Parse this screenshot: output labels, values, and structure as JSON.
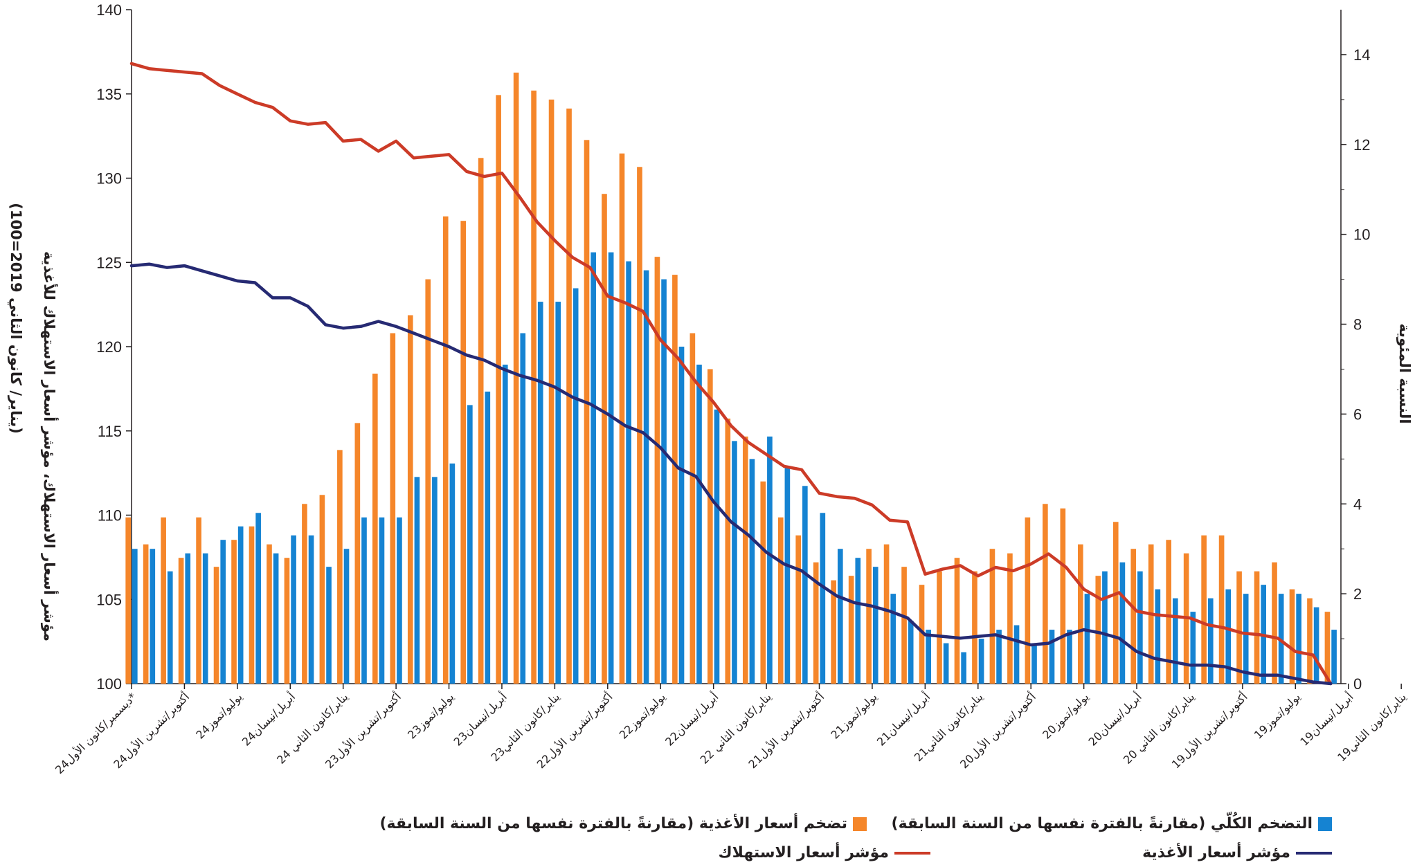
{
  "chart_data": {
    "type": "bar+line",
    "left_axis": {
      "title_line1": "مؤشر أسعار الاستهلاك، مؤشر أسعار الاستهلاك للأغذية",
      "title_line2": "(يناير/ كانون الثاني 2019=100)",
      "ticks": [
        100,
        105,
        110,
        115,
        120,
        125,
        130,
        135,
        140
      ],
      "ylim": [
        100,
        140
      ]
    },
    "right_axis": {
      "title": "النسبة المئوية",
      "ticks": [
        0,
        2,
        4,
        6,
        8,
        10,
        12,
        14
      ],
      "ylim": [
        0,
        15
      ]
    },
    "x_labels": [
      "ديسمبر/كانون الأول24*",
      "أكتوبر/تشرين الأول24",
      "يوليو/تموز24",
      "أبريل/نيسان24",
      "يناير/كانون الثاني 24",
      "أكتوبر/تشرين الأول23",
      "يوليو/تموز23",
      "أبريل/نيسان23",
      "يناير/كانون الثاني23",
      "أكتوبر/تشرين الأول22",
      "يوليو/تموز22",
      "أبريل/نيسان22",
      "يناير/كانون الثاني 22",
      "أكتوبر/تشرين الأول21",
      "يوليو/تموز21",
      "أبريل/نيسان21",
      "يناير/كانون الثاني21",
      "أكتوبر/تشرين الأول20",
      "يوليو/تموز20",
      "أبريل/نيسان20",
      "يناير/كانون الثاني 20",
      "أكتوبر/تشرين الأول19",
      "يوليو/تموز19",
      "أبريل/نيسان19",
      "يناير/كانون الثاني19"
    ],
    "series": [
      {
        "name": "تضخم أسعار الأغذية (مقارنةً بالفترة نفسها من السنة السابقة)",
        "type": "bar",
        "axis": "right",
        "color": "#f5862a",
        "values": [
          3.7,
          3.1,
          3.7,
          2.8,
          3.7,
          2.6,
          3.2,
          3.5,
          3.1,
          2.8,
          4.0,
          4.2,
          5.2,
          5.8,
          6.9,
          7.8,
          8.2,
          9.0,
          10.4,
          10.3,
          11.7,
          13.1,
          13.6,
          13.2,
          13.0,
          12.8,
          12.1,
          10.9,
          11.8,
          11.5,
          9.5,
          9.1,
          7.8,
          7.0,
          5.9,
          5.5,
          4.5,
          3.7,
          3.3,
          2.7,
          2.3,
          2.4,
          3.0,
          3.1,
          2.6,
          2.2,
          2.5,
          2.8,
          2.5,
          3.0,
          2.9,
          3.7,
          4.0,
          3.9,
          3.1,
          2.4,
          3.6,
          3.0,
          3.1,
          3.2,
          2.9,
          3.3,
          3.3,
          2.5,
          2.5,
          2.7,
          2.1,
          1.9,
          1.6
        ],
        "note": "values listed from left (Dec 2024) to right (Jan 2019)"
      },
      {
        "name": "التضخم الكُلّي (مقارنةً بالفترة نفسها من السنة السابقة)",
        "type": "bar",
        "axis": "right",
        "color": "#1583d2",
        "values": [
          3.0,
          3.0,
          2.5,
          2.9,
          2.9,
          3.2,
          3.5,
          3.8,
          2.9,
          3.3,
          3.3,
          2.6,
          3.0,
          3.7,
          3.7,
          3.7,
          4.6,
          4.6,
          4.9,
          6.2,
          6.5,
          7.1,
          7.8,
          8.5,
          8.5,
          8.8,
          9.6,
          9.6,
          9.4,
          9.2,
          9.0,
          7.5,
          7.1,
          6.1,
          5.4,
          5.0,
          5.5,
          4.8,
          4.4,
          3.8,
          3.0,
          2.8,
          2.6,
          2.0,
          1.4,
          1.2,
          0.9,
          0.7,
          1.0,
          1.2,
          1.3,
          0.9,
          1.2,
          1.2,
          2.0,
          2.5,
          2.7,
          2.5,
          2.1,
          1.9,
          1.6,
          1.9,
          2.1,
          2.0,
          2.2,
          2.0,
          2.0,
          1.7,
          1.2
        ]
      },
      {
        "name": "مؤشر أسعار الاستهلاك",
        "type": "line",
        "axis": "left",
        "color": "#cc3b27",
        "values": [
          136.8,
          136.5,
          136.4,
          136.3,
          136.2,
          135.5,
          135.0,
          134.5,
          134.2,
          133.4,
          133.2,
          133.3,
          132.2,
          132.3,
          131.6,
          132.2,
          131.2,
          131.3,
          131.4,
          130.4,
          130.1,
          130.3,
          128.9,
          127.4,
          126.3,
          125.3,
          124.7,
          123.0,
          122.6,
          122.1,
          120.4,
          119.3,
          117.9,
          116.7,
          115.3,
          114.3,
          113.6,
          112.9,
          112.7,
          111.3,
          111.1,
          111.0,
          110.6,
          109.7,
          109.6,
          106.5,
          106.8,
          107.0,
          106.4,
          106.9,
          106.7,
          107.1,
          107.7,
          106.9,
          105.6,
          105.0,
          105.4,
          104.3,
          104.1,
          104.0,
          103.9,
          103.5,
          103.3,
          103.0,
          102.9,
          102.7,
          101.9,
          101.7,
          100.0
        ]
      },
      {
        "name": "مؤشر أسعار الأغذية",
        "type": "line",
        "axis": "left",
        "color": "#262a73",
        "values": [
          124.8,
          124.9,
          124.7,
          124.8,
          124.5,
          124.2,
          123.9,
          123.8,
          122.9,
          122.9,
          122.4,
          121.3,
          121.1,
          121.2,
          121.5,
          121.2,
          120.8,
          120.4,
          120.0,
          119.5,
          119.2,
          118.7,
          118.3,
          118.0,
          117.6,
          117.0,
          116.6,
          116.0,
          115.3,
          114.9,
          114.0,
          112.8,
          112.3,
          110.8,
          109.6,
          108.8,
          107.8,
          107.1,
          106.7,
          105.9,
          105.2,
          104.8,
          104.6,
          104.3,
          103.9,
          102.9,
          102.8,
          102.7,
          102.8,
          102.9,
          102.6,
          102.3,
          102.4,
          102.9,
          103.2,
          103.0,
          102.7,
          101.9,
          101.5,
          101.3,
          101.1,
          101.1,
          101.0,
          100.7,
          100.5,
          100.5,
          100.3,
          100.1,
          100.0
        ]
      }
    ]
  },
  "legend": {
    "headline_inflation": "التضخم الكُلّي (مقارنةً بالفترة نفسها من السنة السابقة)",
    "food_inflation": "تضخم أسعار الأغذية (مقارنةً بالفترة نفسها من السنة السابقة)",
    "food_price_index": "مؤشر أسعار الأغذية",
    "consumer_price_index": "مؤشر أسعار الاستهلاك"
  }
}
